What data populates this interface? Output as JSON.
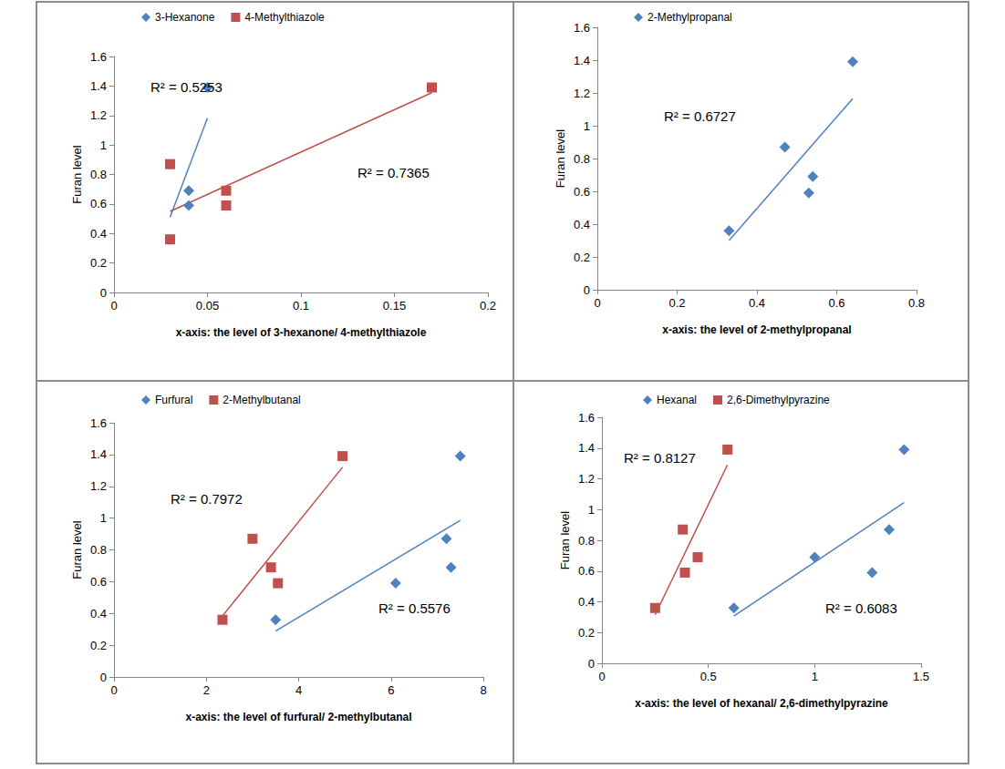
{
  "chart_data": [
    {
      "type": "scatter",
      "legend": "top-left",
      "grid": false,
      "xlabel": "x-axis: the level of 3-hexanone/ 4-methylthiazole",
      "ylabel": "Furan level",
      "xlim": [
        0,
        0.2
      ],
      "xticks": [
        0,
        0.05,
        0.1,
        0.15,
        0.2
      ],
      "ylim": [
        0,
        1.6
      ],
      "yticks": [
        0,
        0.2,
        0.4,
        0.6,
        0.8,
        1,
        1.2,
        1.4,
        1.6
      ],
      "annotations": [
        "R² = 0.5253",
        "R² = 0.7365"
      ],
      "series": [
        {
          "name": "3-Hexanone",
          "color": "#4f81bd",
          "marker": "diamond",
          "line_style": "solid",
          "x": [
            0.03,
            0.03,
            0.04,
            0.04,
            0.05
          ],
          "values": [
            0.36,
            0.87,
            0.69,
            0.59,
            1.39
          ]
        },
        {
          "name": "4-Methylthiazole",
          "color": "#c0504d",
          "marker": "square",
          "line_style": "solid",
          "x": [
            0.03,
            0.03,
            0.06,
            0.06,
            0.17
          ],
          "values": [
            0.36,
            0.87,
            0.69,
            0.59,
            1.39
          ]
        }
      ]
    },
    {
      "type": "scatter",
      "legend": "top-left",
      "grid": false,
      "xlabel": "x-axis: the level of 2-methylpropanal",
      "ylabel": "Furan level",
      "xlim": [
        0,
        0.8
      ],
      "xticks": [
        0,
        0.2,
        0.4,
        0.6,
        0.8
      ],
      "ylim": [
        0,
        1.6
      ],
      "yticks": [
        0,
        0.2,
        0.4,
        0.6,
        0.8,
        1,
        1.2,
        1.4,
        1.6
      ],
      "annotations": [
        "R² = 0.6727"
      ],
      "series": [
        {
          "name": "2-Methylpropanal",
          "color": "#4f81bd",
          "marker": "diamond",
          "line_style": "solid",
          "x": [
            0.33,
            0.47,
            0.53,
            0.54,
            0.64
          ],
          "values": [
            0.36,
            0.87,
            0.59,
            0.69,
            1.39
          ]
        }
      ]
    },
    {
      "type": "scatter",
      "legend": "top-left",
      "grid": false,
      "xlabel": "x-axis: the level of furfural/ 2-methylbutanal",
      "ylabel": "Furan level",
      "xlim": [
        0,
        8
      ],
      "xticks": [
        0,
        2,
        4,
        6,
        8
      ],
      "ylim": [
        0,
        1.6
      ],
      "yticks": [
        0,
        0.2,
        0.4,
        0.6,
        0.8,
        1,
        1.2,
        1.4,
        1.6
      ],
      "annotations": [
        "R² = 0.7972",
        "R² = 0.5576"
      ],
      "series": [
        {
          "name": "Furfural",
          "color": "#4f81bd",
          "marker": "diamond",
          "line_style": "solid",
          "x": [
            3.5,
            6.1,
            7.3,
            7.2,
            7.5
          ],
          "values": [
            0.36,
            0.59,
            0.69,
            0.87,
            1.39
          ]
        },
        {
          "name": "2-Methylbutanal",
          "color": "#c0504d",
          "marker": "square",
          "line_style": "solid",
          "x": [
            2.35,
            3.0,
            3.4,
            3.55,
            4.95
          ],
          "values": [
            0.36,
            0.87,
            0.69,
            0.59,
            1.39
          ]
        }
      ]
    },
    {
      "type": "scatter",
      "legend": "top-left",
      "grid": false,
      "xlabel": "x-axis: the level of hexanal/ 2,6-dimethylpyrazine",
      "ylabel": "Furan level",
      "xlim": [
        0,
        1.5
      ],
      "xticks": [
        0,
        0.5,
        1,
        1.5
      ],
      "ylim": [
        0,
        1.6
      ],
      "yticks": [
        0,
        0.2,
        0.4,
        0.6,
        0.8,
        1,
        1.2,
        1.4,
        1.6
      ],
      "annotations": [
        "R² = 0.8127",
        "R² = 0.6083"
      ],
      "series": [
        {
          "name": "Hexanal",
          "color": "#4f81bd",
          "marker": "diamond",
          "line_style": "solid",
          "x": [
            0.62,
            1.0,
            1.27,
            1.35,
            1.42
          ],
          "values": [
            0.36,
            0.69,
            0.59,
            0.87,
            1.39
          ]
        },
        {
          "name": "2,6-Dimethylpyrazine",
          "color": "#c0504d",
          "marker": "square",
          "line_style": "solid",
          "x": [
            0.25,
            0.38,
            0.39,
            0.45,
            0.59
          ],
          "values": [
            0.36,
            0.87,
            0.59,
            0.69,
            1.39
          ]
        }
      ]
    }
  ]
}
